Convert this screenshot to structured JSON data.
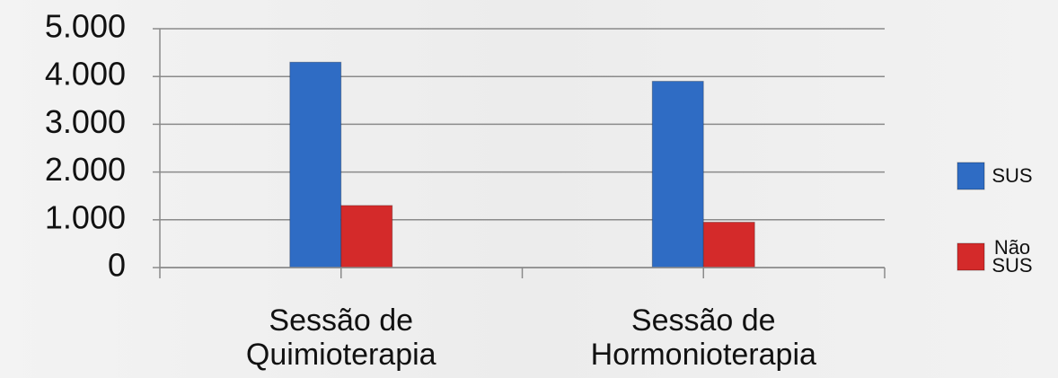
{
  "chart_data": {
    "type": "bar",
    "categories": [
      "Sessão de Quimioterapia",
      "Sessão de Hormonioterapia"
    ],
    "series": [
      {
        "name": "SUS",
        "color": "#2f6cc4",
        "values": [
          4300,
          3900
        ]
      },
      {
        "name": "Não SUS",
        "color": "#d42a2a",
        "values": [
          1300,
          950
        ]
      }
    ],
    "ylim": [
      0,
      5000
    ],
    "yticks": [
      0,
      {
        "value": 1000,
        "label": "1.000"
      },
      {
        "value": 2000,
        "label": "2.000"
      },
      {
        "value": 3000,
        "label": "3.000"
      },
      {
        "value": 4000,
        "label": "4.000"
      },
      {
        "value": 5000,
        "label": "5.000"
      }
    ],
    "grid": true,
    "legend": "right"
  }
}
